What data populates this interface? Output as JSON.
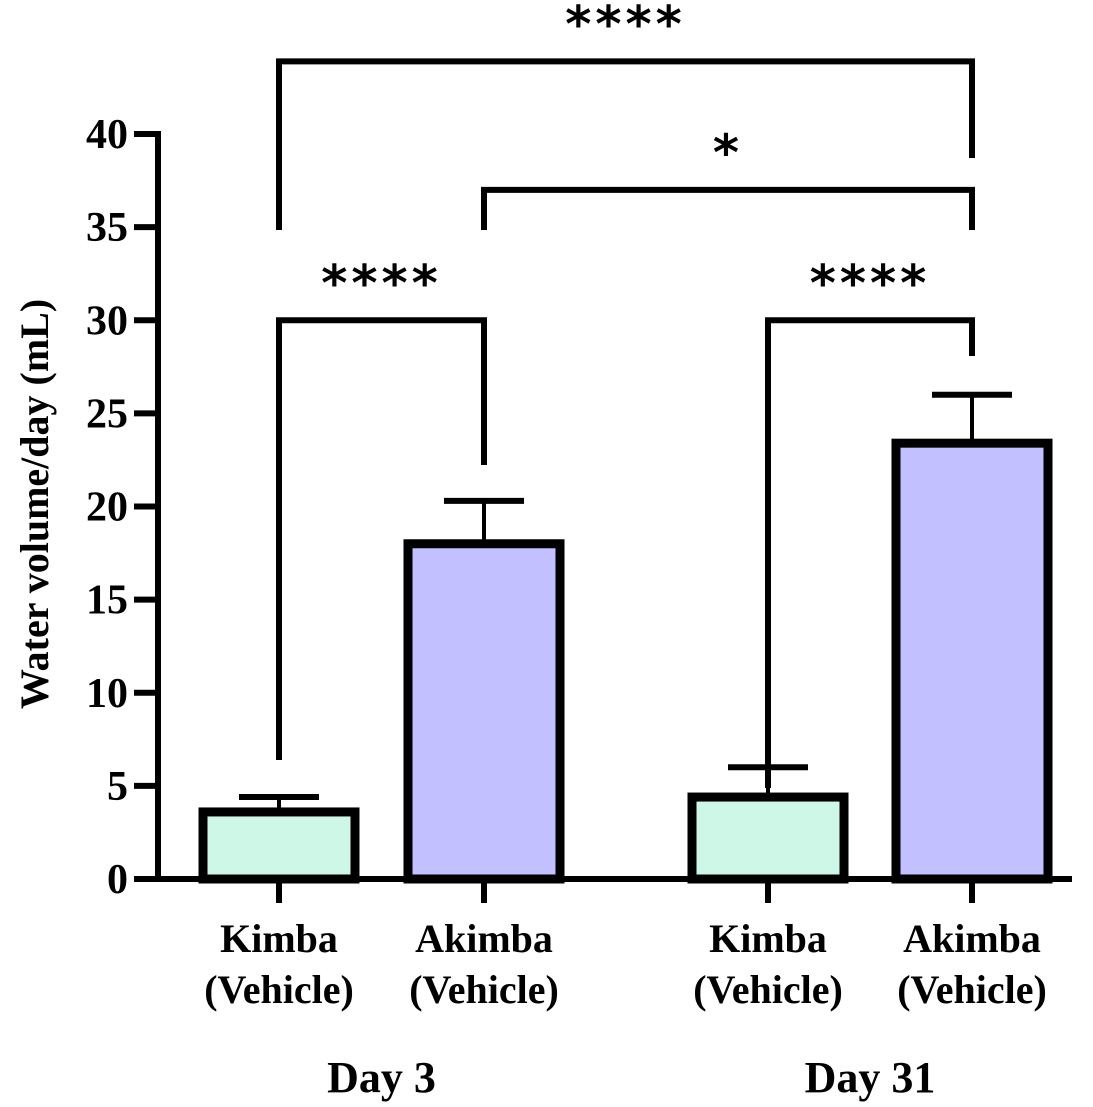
{
  "chart_data": {
    "type": "bar",
    "title": "",
    "xlabel": "",
    "ylabel": "Water volume/day (mL)",
    "ylim": [
      0,
      40
    ],
    "yticks": [
      0,
      5,
      10,
      15,
      20,
      25,
      30,
      35,
      40
    ],
    "ytick_labels": [
      "0",
      "5",
      "10",
      "15",
      "20",
      "25",
      "30",
      "35",
      "40"
    ],
    "grid": false,
    "categories": [
      {
        "line1": "Kimba",
        "line2": "(Vehicle)"
      },
      {
        "line1": "Akimba",
        "line2": "(Vehicle)"
      },
      {
        "line1": "Kimba",
        "line2": "(Vehicle)"
      },
      {
        "line1": "Akimba",
        "line2": "(Vehicle)"
      }
    ],
    "groups": [
      {
        "label": "Day 3",
        "bars": [
          0,
          1
        ]
      },
      {
        "label": "Day 31",
        "bars": [
          2,
          3
        ]
      }
    ],
    "values": [
      3.6,
      18.0,
      4.4,
      23.4
    ],
    "error_upper": [
      4.4,
      20.3,
      6.0,
      26.0
    ],
    "colors": [
      "#cff7e8",
      "#c2c0ff"
    ],
    "bar_colors": [
      "#cff7e8",
      "#c2c0ff",
      "#cff7e8",
      "#c2c0ff"
    ],
    "significance": [
      {
        "from": 0,
        "to": 1,
        "label": "****",
        "y": 30
      },
      {
        "from": 2,
        "to": 3,
        "label": "****",
        "y": 30
      },
      {
        "from": 1,
        "to": 3,
        "label": "*",
        "y": 37
      },
      {
        "from": 0,
        "to": 3,
        "label": "****",
        "y": 43.9
      }
    ]
  }
}
